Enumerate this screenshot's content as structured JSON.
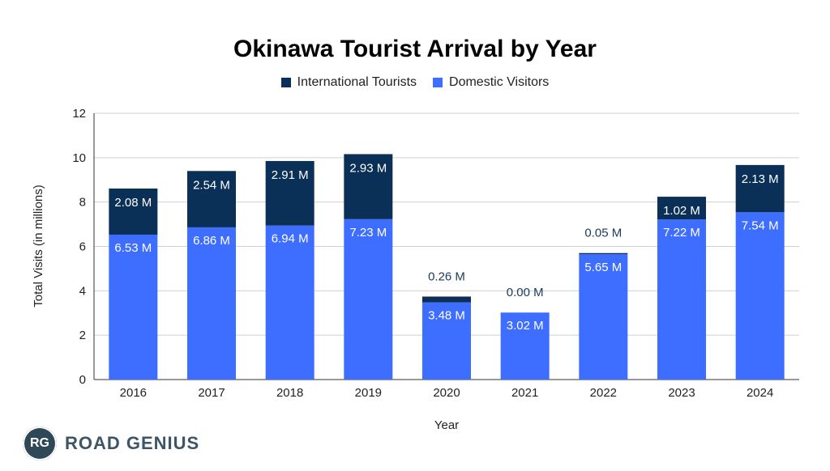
{
  "chart_data": {
    "type": "bar",
    "stacked": true,
    "title": "Okinawa Tourist Arrival by Year",
    "xlabel": "Year",
    "ylabel": "Total Visits (in millions)",
    "ylim": [
      0,
      12
    ],
    "yticks": [
      0,
      2,
      4,
      6,
      8,
      10,
      12
    ],
    "grid": true,
    "legend_position": "top",
    "categories": [
      "2016",
      "2017",
      "2018",
      "2019",
      "2020",
      "2021",
      "2022",
      "2023",
      "2024"
    ],
    "series": [
      {
        "name": "Domestic Visitors",
        "color": "#3d6eff",
        "values": [
          6.53,
          6.86,
          6.94,
          7.23,
          3.48,
          3.02,
          5.65,
          7.22,
          7.54
        ],
        "labels": [
          "6.53 M",
          "6.86 M",
          "6.94 M",
          "7.23 M",
          "3.48 M",
          "3.02 M",
          "5.65 M",
          "7.22 M",
          "7.54 M"
        ]
      },
      {
        "name": "International Tourists",
        "color": "#0b3057",
        "values": [
          2.08,
          2.54,
          2.91,
          2.93,
          0.26,
          0.0,
          0.05,
          1.02,
          2.13
        ],
        "labels": [
          "2.08 M",
          "2.54 M",
          "2.91 M",
          "2.93 M",
          "0.26 M",
          "0.00 M",
          "0.05 M",
          "1.02 M",
          "2.13 M"
        ]
      }
    ]
  },
  "legend": {
    "items": [
      {
        "label": "International Tourists",
        "color": "#0b3057"
      },
      {
        "label": "Domestic Visitors",
        "color": "#3d6eff"
      }
    ]
  },
  "brand": {
    "badge_text": "RG",
    "name": "ROAD GENIUS"
  }
}
